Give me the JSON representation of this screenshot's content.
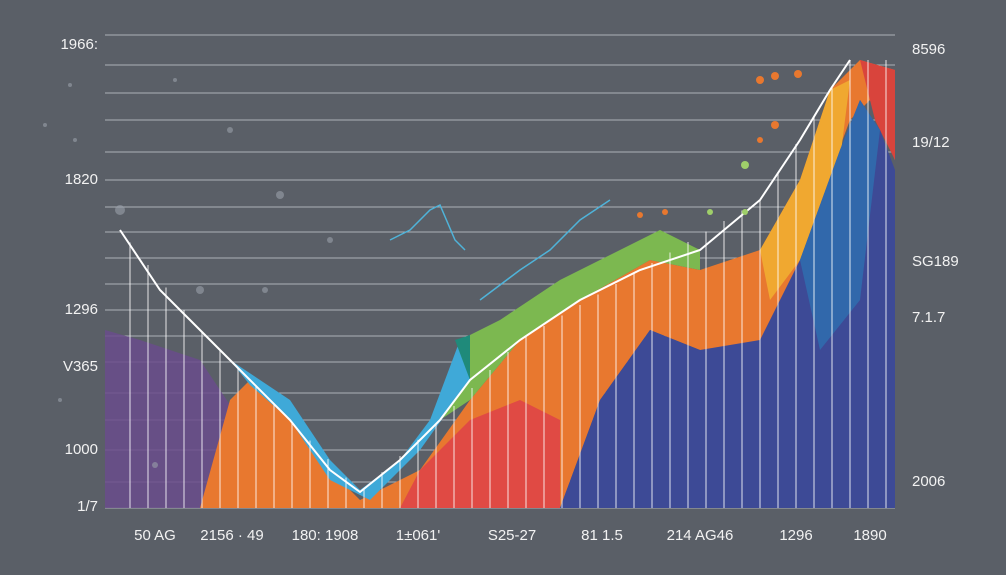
{
  "left_labels": [
    "1966:",
    "1820",
    "1296",
    "V365",
    "1000",
    "1/7"
  ],
  "right_labels": [
    "8596",
    "19/12",
    "SG189",
    "7.1.7",
    "2006"
  ],
  "bottom_labels": [
    "50 AG",
    "2156 · 49",
    "180: 1908",
    "1±061'",
    "S25-27",
    "81 1.5",
    "214 AG46",
    "1296",
    "1890"
  ]
}
